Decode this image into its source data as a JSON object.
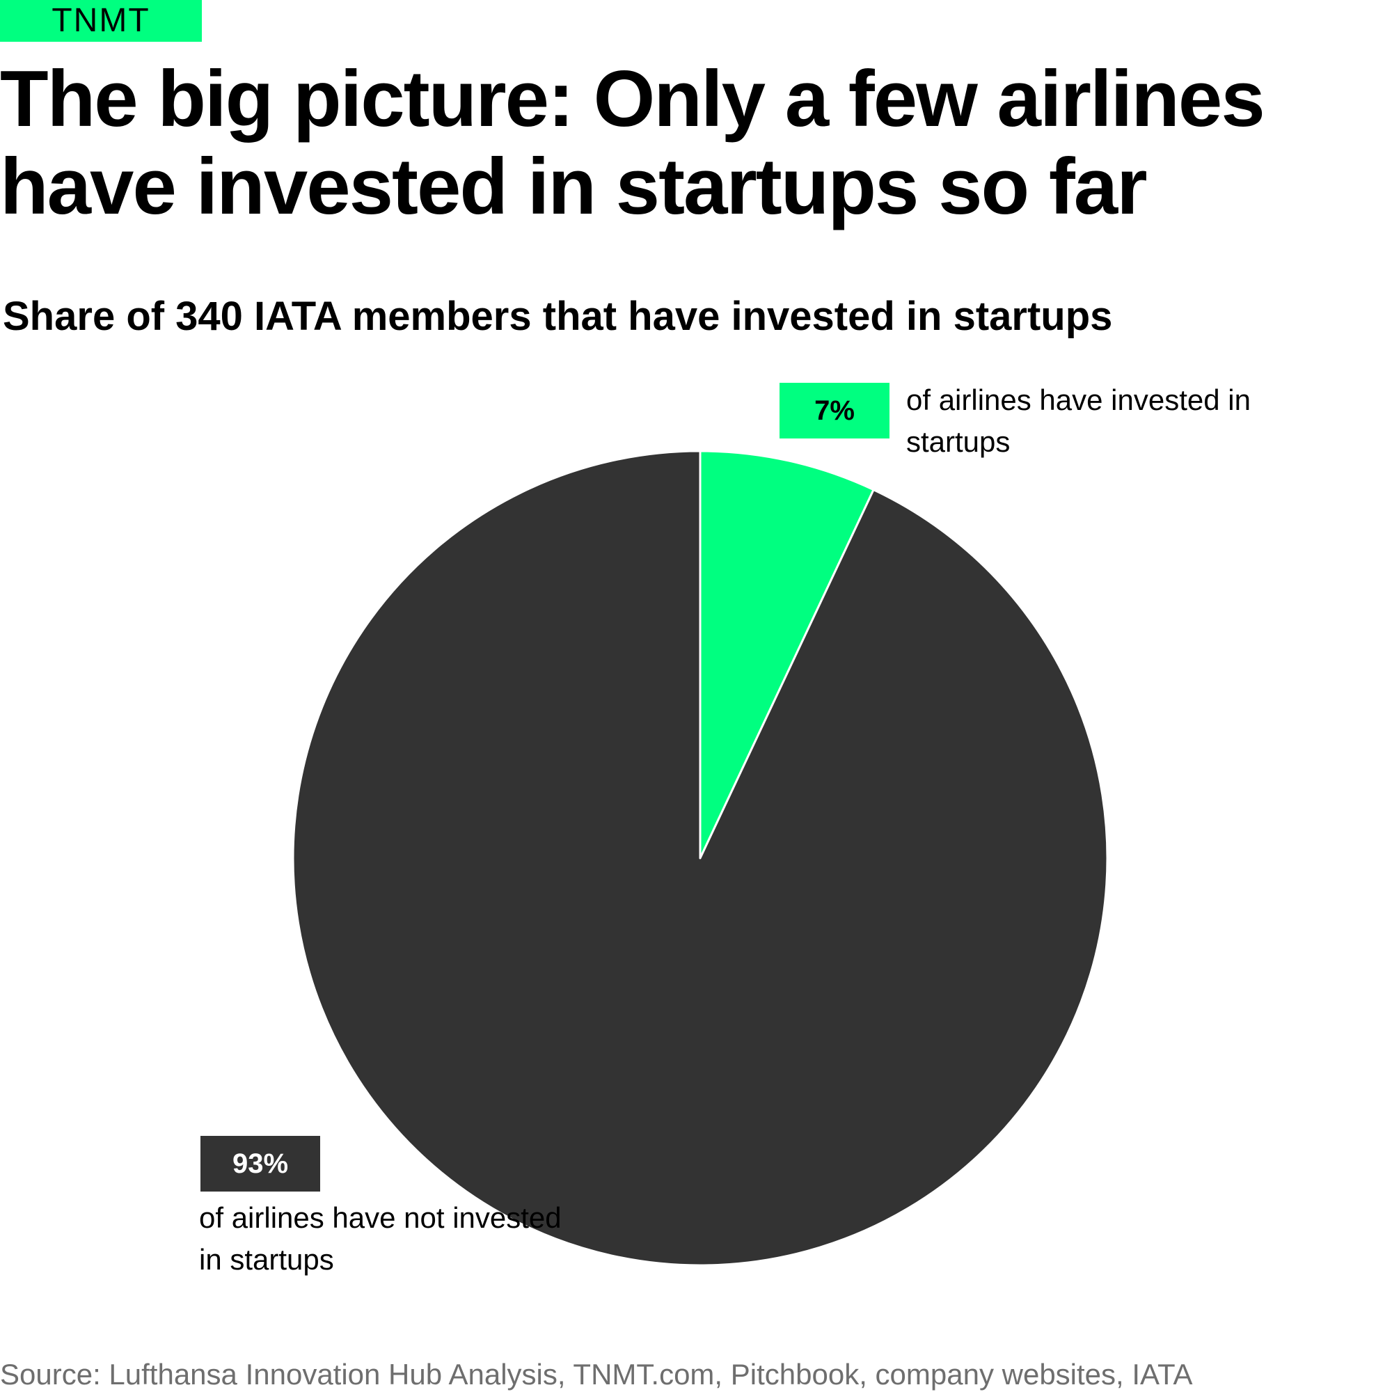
{
  "brand": {
    "name": "TNMT",
    "color": "#00ff80"
  },
  "headline": "The big picture: Only a few airlines have invested in startups so far",
  "subtitle": "Share of 340 IATA members that have invested in startups",
  "chart_data": {
    "type": "pie",
    "title": "Share of 340 IATA members that have invested in startups",
    "slices": [
      {
        "value": 7,
        "value_label": "7%",
        "label": "of airlines have invested in startups",
        "color": "#00ff80"
      },
      {
        "value": 93,
        "value_label": "93%",
        "label": "of airlines have not invested in startups",
        "color": "#333333"
      }
    ],
    "start": "12 o'clock",
    "direction": "clockwise"
  },
  "source": "Source: Lufthansa Innovation Hub Analysis, TNMT.com, Pitchbook, company websites, IATA"
}
